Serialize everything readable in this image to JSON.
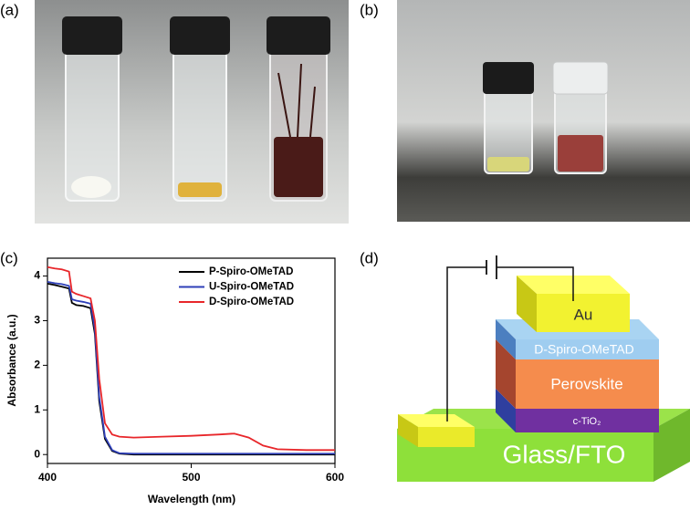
{
  "panel_labels": [
    "(a)",
    "(b)",
    "(c)",
    "(d)"
  ],
  "chart_data": {
    "type": "line",
    "x_label": "Wavelength (nm)",
    "y_label": "Absorbance (a.u.)",
    "x": [
      400,
      405,
      410,
      415,
      417,
      420,
      425,
      430,
      433,
      436,
      440,
      445,
      450,
      460,
      480,
      500,
      520,
      530,
      540,
      550,
      560,
      580,
      600
    ],
    "series": [
      {
        "name": "P-Spiro-OMeTAD",
        "color": "#000000",
        "values": [
          3.83,
          3.8,
          3.76,
          3.72,
          3.4,
          3.35,
          3.33,
          3.28,
          2.7,
          1.2,
          0.35,
          0.08,
          0.02,
          0.0,
          0.0,
          0.0,
          0.0,
          0.0,
          0.0,
          0.0,
          0.0,
          0.0,
          0.0
        ]
      },
      {
        "name": "U-Spiro-OMeTAD",
        "color": "#2e3fb8",
        "values": [
          3.87,
          3.84,
          3.82,
          3.78,
          3.48,
          3.45,
          3.42,
          3.38,
          2.8,
          1.3,
          0.4,
          0.1,
          0.03,
          0.02,
          0.02,
          0.02,
          0.02,
          0.02,
          0.02,
          0.02,
          0.02,
          0.02,
          0.02
        ]
      },
      {
        "name": "D-Spiro-OMeTAD",
        "color": "#e8262a",
        "values": [
          4.2,
          4.17,
          4.15,
          4.1,
          3.65,
          3.6,
          3.55,
          3.5,
          3.0,
          1.7,
          0.7,
          0.45,
          0.4,
          0.38,
          0.4,
          0.42,
          0.45,
          0.47,
          0.38,
          0.2,
          0.12,
          0.1,
          0.1
        ]
      }
    ],
    "xlim": [
      400,
      600
    ],
    "xticks": [
      400,
      500,
      600
    ],
    "ylim": [
      -0.2,
      4.4
    ],
    "yticks": [
      0,
      1,
      2,
      3,
      4
    ],
    "legend": "upper right"
  },
  "diagram": {
    "au": "Au",
    "htl": "D-Spiro-OMeTAD",
    "perovskite": "Perovskite",
    "etl": "c-TiO₂",
    "substrate": "Glass/FTO"
  }
}
